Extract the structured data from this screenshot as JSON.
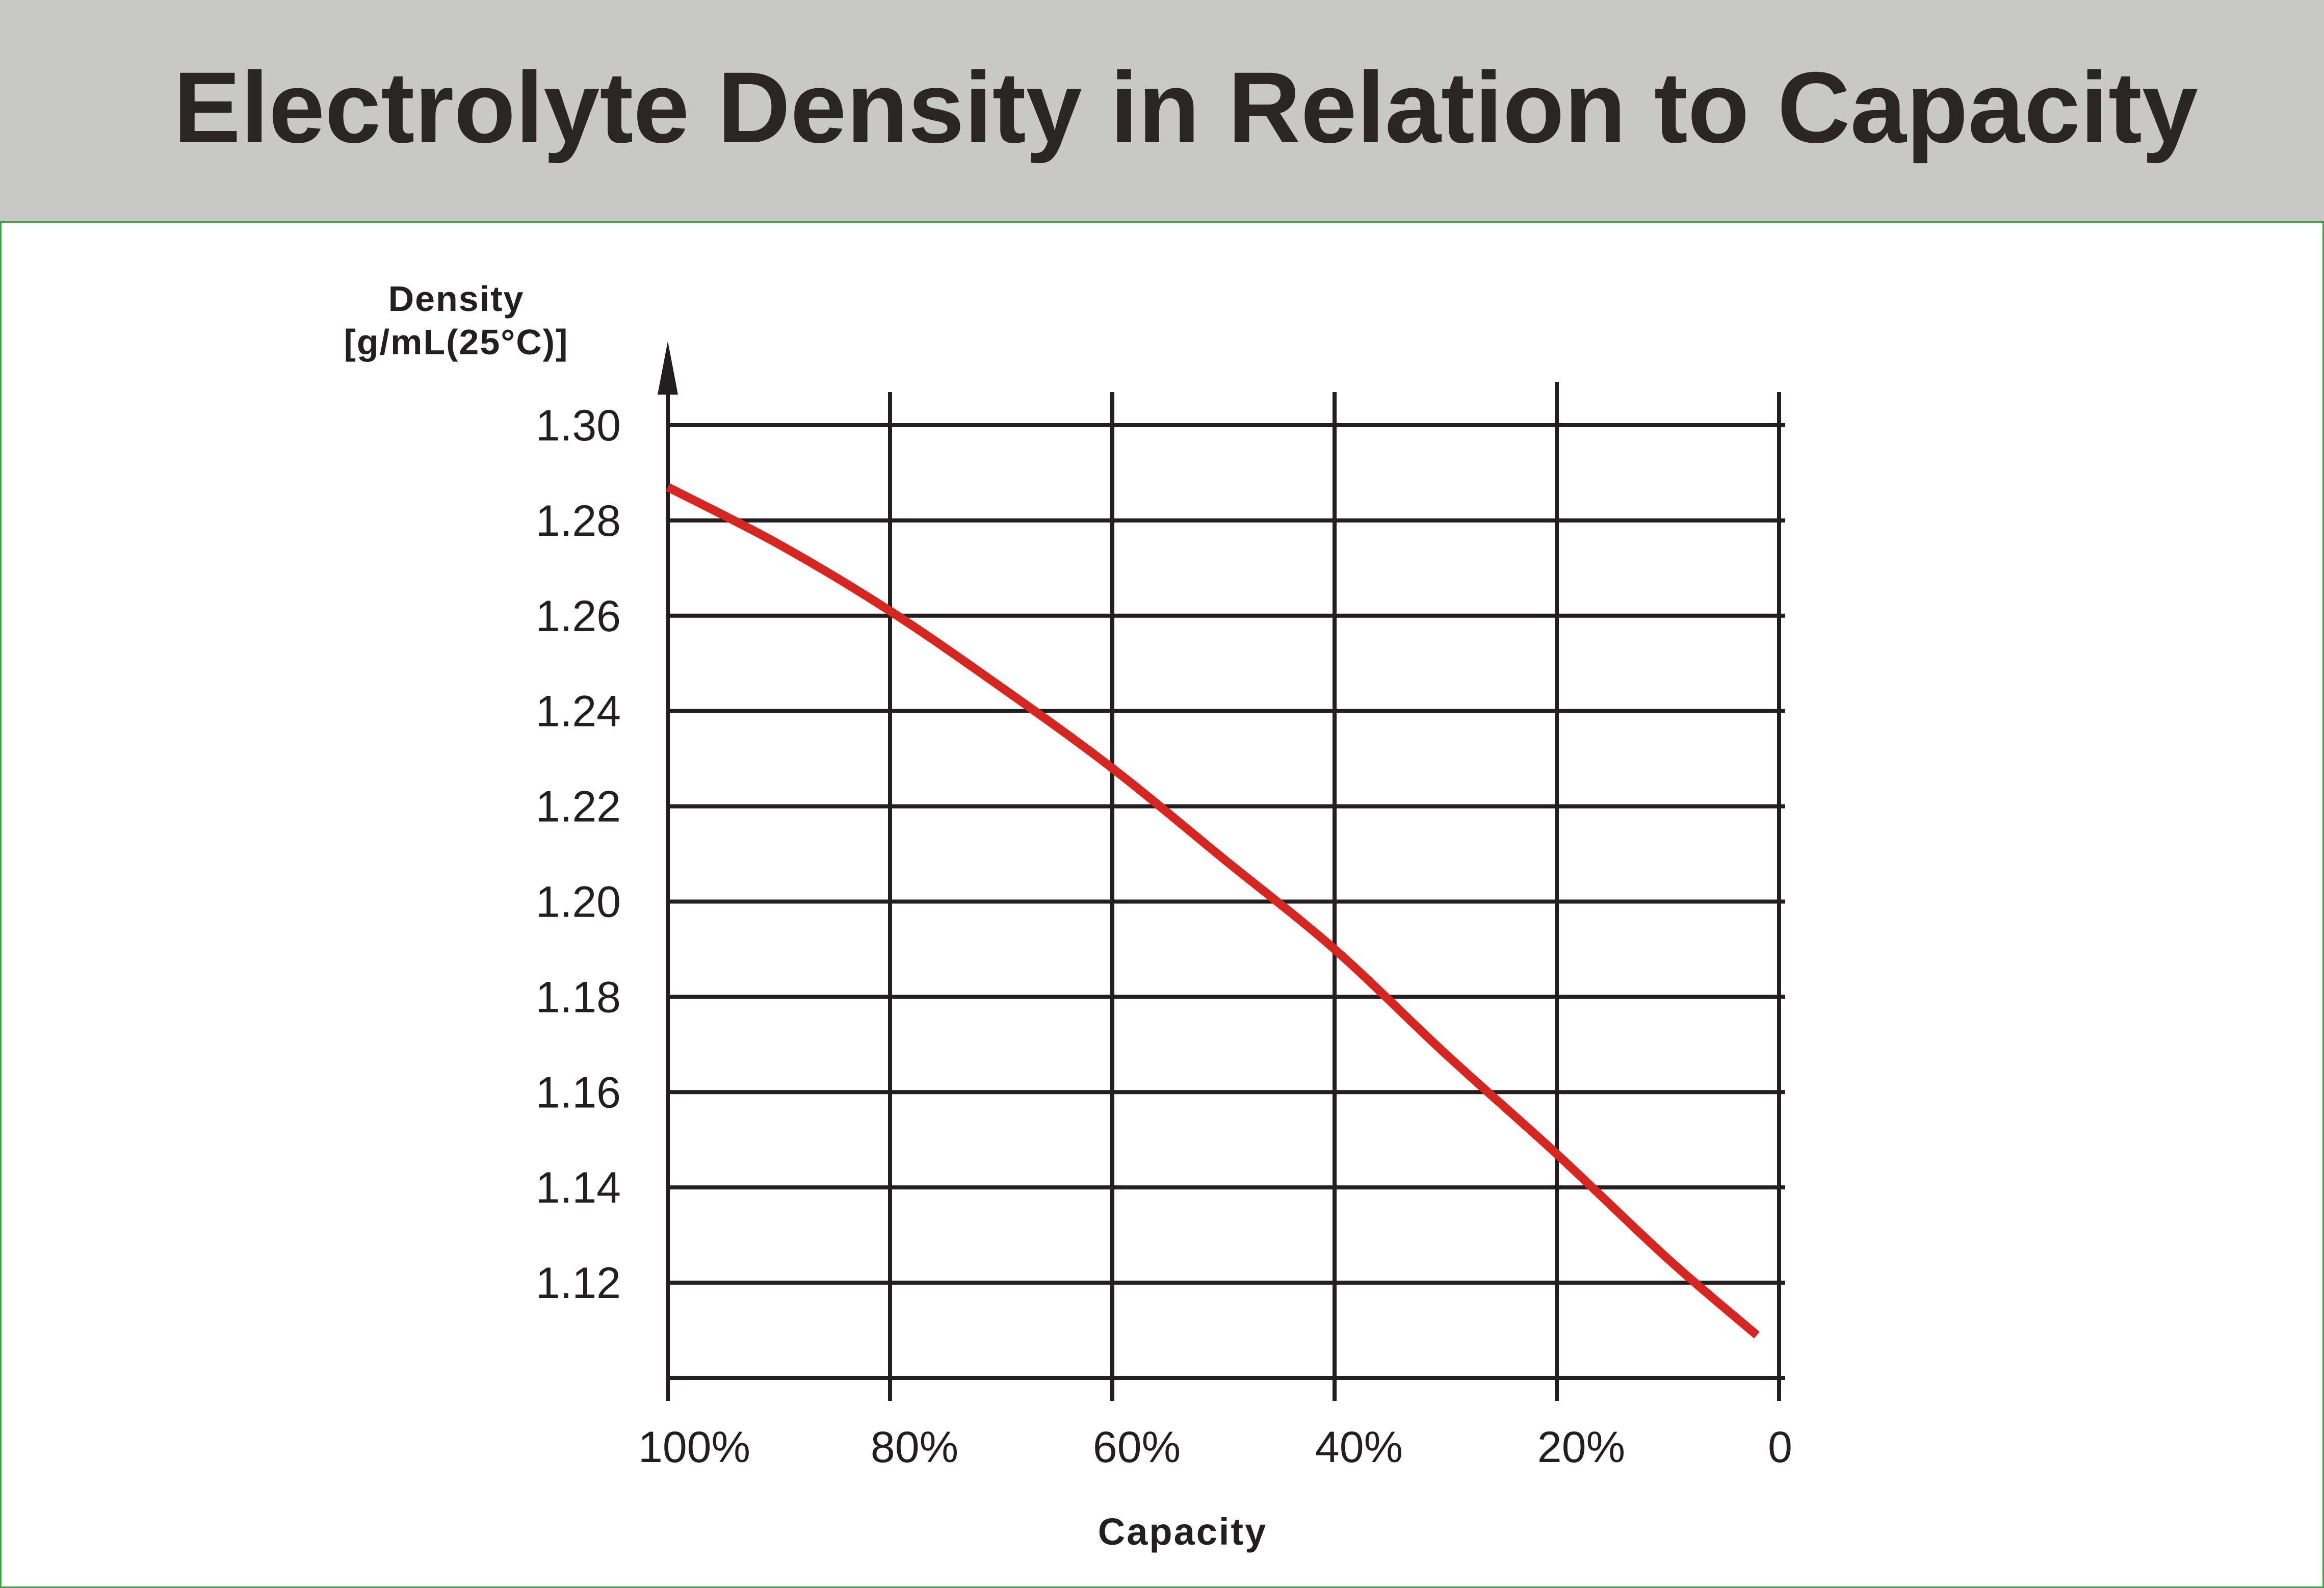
{
  "header": {
    "title": "Electrolyte Density in Relation to Capacity"
  },
  "chart_data": {
    "type": "line",
    "title": "Electrolyte Density in Relation to Capacity",
    "ylabel_line1": "Density",
    "ylabel_line2": "[g/mL(25°C)]",
    "xlabel": "Capacity",
    "x_direction": "reversed",
    "xlim": [
      100,
      0
    ],
    "ylim": [
      1.1,
      1.3
    ],
    "x_ticks": [
      100,
      80,
      60,
      40,
      20,
      0
    ],
    "x_tick_labels": [
      "100%",
      "80%",
      "60%",
      "40%",
      "20%",
      "0"
    ],
    "y_ticks": [
      1.3,
      1.28,
      1.26,
      1.24,
      1.22,
      1.2,
      1.18,
      1.16,
      1.14,
      1.12
    ],
    "y_tick_labels": [
      "1.30",
      "1.28",
      "1.26",
      "1.24",
      "1.22",
      "1.20",
      "1.18",
      "1.16",
      "1.14",
      "1.12"
    ],
    "grid": true,
    "series": [
      {
        "color": "#d7261f",
        "x": [
          100,
          90,
          80,
          70,
          60,
          50,
          40,
          30,
          20,
          10,
          2
        ],
        "y": [
          1.287,
          1.275,
          1.261,
          1.245,
          1.228,
          1.209,
          1.19,
          1.168,
          1.147,
          1.125,
          1.109
        ]
      }
    ],
    "colors": {
      "axis": "#231f20",
      "grid": "#231f20",
      "text": "#231f20"
    }
  }
}
